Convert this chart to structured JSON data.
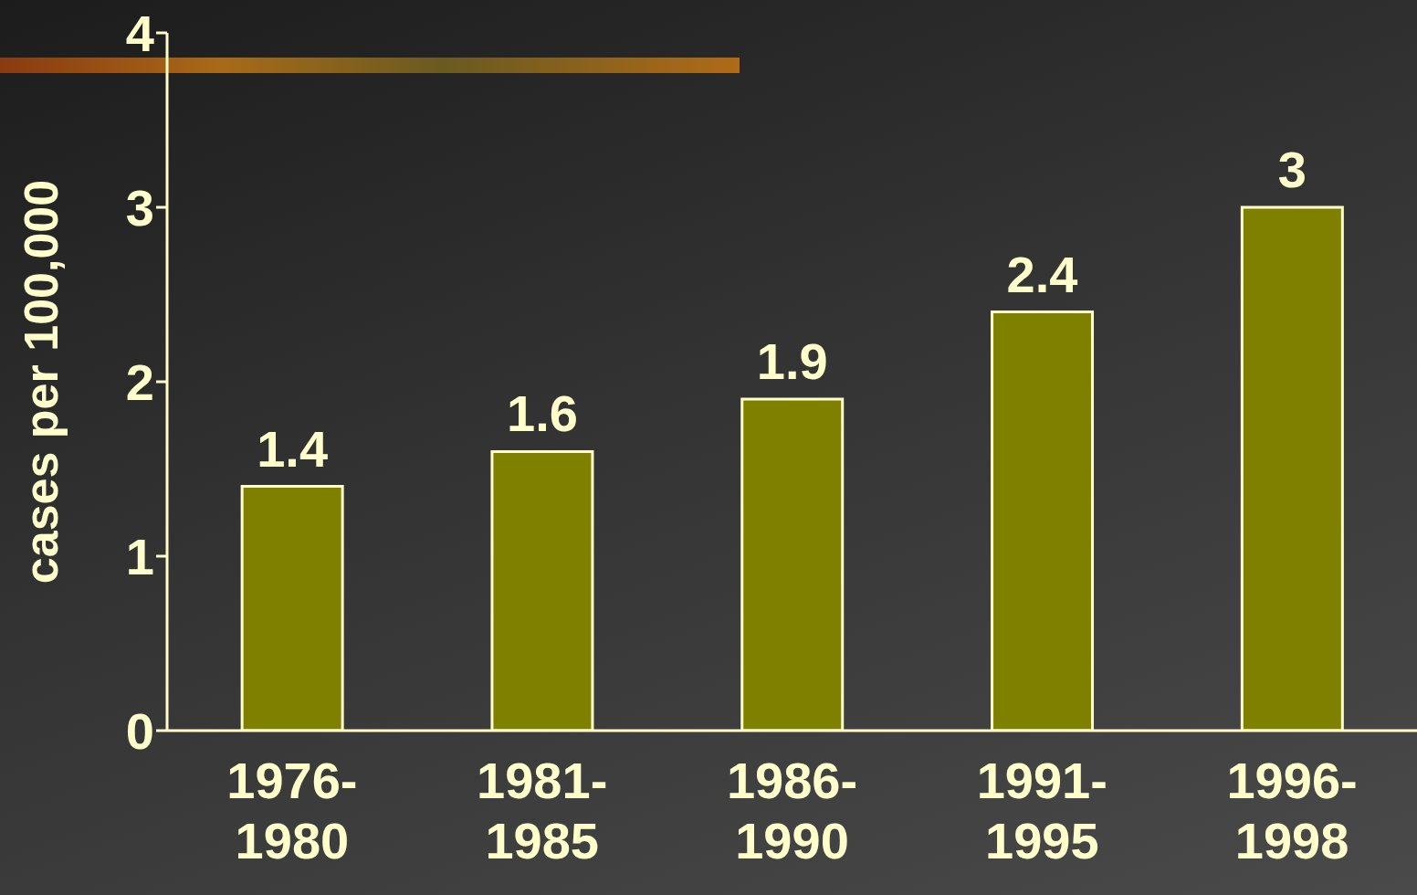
{
  "chart_data": {
    "type": "bar",
    "ylabel": "cases per 100,000",
    "categories": [
      "1976-1980",
      "1981-1985",
      "1986-1990",
      "1991-1995",
      "1996-1998"
    ],
    "values": [
      1.4,
      1.6,
      1.9,
      2.4,
      3
    ],
    "color": "#808000",
    "ylim": [
      0,
      4
    ],
    "yticks": [
      0,
      1,
      2,
      3,
      4
    ],
    "grid": false,
    "data_labels": true
  }
}
